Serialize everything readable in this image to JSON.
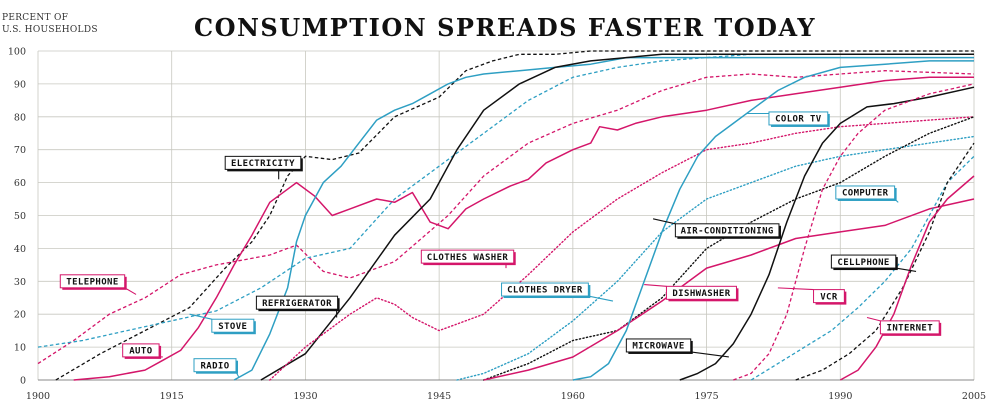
{
  "chart_data": {
    "type": "line",
    "title": "CONSUMPTION SPREADS FASTER TODAY",
    "ylabel_lines": [
      "PERCENT OF",
      "U.S. HOUSEHOLDS"
    ],
    "xlabel": "",
    "xlim": [
      1900,
      2005
    ],
    "ylim": [
      0,
      100
    ],
    "x_ticks": [
      1900,
      1915,
      1930,
      1945,
      1960,
      1975,
      1990,
      2005
    ],
    "y_ticks": [
      0,
      10,
      20,
      30,
      40,
      50,
      60,
      70,
      80,
      90,
      100
    ],
    "grid": true,
    "colors": {
      "black": "#111111",
      "cyan": "#2e9fc3",
      "magenta": "#d4166a",
      "grid": "#c8c8c0"
    },
    "series": [
      {
        "name": "ELECTRICITY",
        "color": "black",
        "style": "dashed",
        "x": [
          1902,
          1907,
          1912,
          1917,
          1921,
          1924,
          1926,
          1928,
          1930,
          1933,
          1936,
          1940,
          1945,
          1948,
          1951,
          1954,
          1958,
          1962,
          1966,
          2005
        ],
        "y": [
          0,
          8,
          15,
          22,
          34,
          42,
          50,
          62,
          68,
          67,
          69,
          80,
          86,
          94,
          97,
          99,
          99,
          100,
          100,
          100
        ]
      },
      {
        "name": "TELEPHONE",
        "color": "magenta",
        "style": "dashed",
        "x": [
          1900,
          1904,
          1908,
          1912,
          1916,
          1920,
          1926,
          1929,
          1932,
          1935,
          1940,
          1946,
          1950,
          1955,
          1960,
          1965,
          1970,
          1975,
          1980,
          1985,
          1990,
          1995,
          2005
        ],
        "y": [
          5,
          12,
          20,
          25,
          32,
          35,
          38,
          41,
          33,
          31,
          36,
          50,
          62,
          72,
          78,
          82,
          88,
          92,
          93,
          92,
          93,
          94,
          93
        ]
      },
      {
        "name": "AUTO",
        "color": "magenta",
        "style": "solid",
        "x": [
          1904,
          1908,
          1912,
          1914,
          1916,
          1918,
          1920,
          1922,
          1924,
          1926,
          1928,
          1929,
          1931,
          1933,
          1935,
          1938,
          1940,
          1942,
          1944,
          1946,
          1948,
          1950,
          1953,
          1955,
          1957,
          1960,
          1962,
          1963,
          1965,
          1967,
          1970,
          1975,
          1980,
          1985,
          1990,
          1995,
          2000,
          2005
        ],
        "y": [
          0,
          1,
          3,
          6,
          9,
          16,
          25,
          35,
          44,
          54,
          58,
          60,
          56,
          50,
          52,
          55,
          54,
          57,
          48,
          46,
          52,
          55,
          59,
          61,
          66,
          70,
          72,
          77,
          76,
          78,
          80,
          82,
          85,
          87,
          89,
          91,
          92,
          92
        ]
      },
      {
        "name": "STOVE",
        "color": "cyan",
        "style": "dashed",
        "x": [
          1900,
          1905,
          1910,
          1915,
          1920,
          1925,
          1930,
          1935,
          1940,
          1945,
          1950,
          1955,
          1960,
          1965,
          1970,
          1975,
          1980,
          1985,
          1990,
          1995,
          2000,
          2005
        ],
        "y": [
          10,
          12,
          15,
          18,
          21,
          28,
          37,
          40,
          55,
          65,
          75,
          85,
          92,
          95,
          97,
          98,
          99,
          99,
          99,
          99,
          99,
          99
        ]
      },
      {
        "name": "RADIO",
        "color": "cyan",
        "style": "solid",
        "x": [
          1922,
          1924,
          1926,
          1928,
          1929,
          1930,
          1932,
          1934,
          1936,
          1938,
          1940,
          1942,
          1944,
          1946,
          1948,
          1950,
          1954,
          1958,
          1962,
          1966,
          1970,
          1980,
          1990,
          2005
        ],
        "y": [
          0,
          3,
          14,
          28,
          42,
          50,
          60,
          65,
          72,
          79,
          82,
          84,
          87,
          90,
          92,
          93,
          94,
          95,
          96,
          98,
          98,
          98,
          98,
          98
        ]
      },
      {
        "name": "REFRIGERATOR",
        "color": "black",
        "style": "solid",
        "x": [
          1925,
          1930,
          1935,
          1940,
          1944,
          1947,
          1950,
          1954,
          1958,
          1962,
          1966,
          1970,
          1980,
          1990,
          2005
        ],
        "y": [
          0,
          8,
          25,
          44,
          55,
          70,
          82,
          90,
          95,
          97,
          98,
          99,
          99,
          99,
          99
        ]
      },
      {
        "name": "CLOTHES WASHER",
        "color": "magenta",
        "style": "dotted",
        "x": [
          1926,
          1930,
          1935,
          1938,
          1940,
          1942,
          1945,
          1950,
          1955,
          1960,
          1965,
          1970,
          1975,
          1980,
          1985,
          1990,
          1995,
          2000,
          2005
        ],
        "y": [
          0,
          10,
          20,
          25,
          23,
          19,
          15,
          20,
          32,
          45,
          55,
          63,
          70,
          72,
          75,
          77,
          78,
          79,
          80
        ]
      },
      {
        "name": "CLOTHES DRYER",
        "color": "cyan",
        "style": "dotted",
        "x": [
          1947,
          1950,
          1955,
          1960,
          1965,
          1970,
          1975,
          1980,
          1985,
          1990,
          1995,
          2000,
          2005
        ],
        "y": [
          0,
          2,
          8,
          18,
          30,
          45,
          55,
          60,
          65,
          68,
          70,
          72,
          74
        ]
      },
      {
        "name": "AIR-CONDITIONING",
        "color": "black",
        "style": "dotted",
        "x": [
          1950,
          1955,
          1960,
          1965,
          1970,
          1975,
          1980,
          1985,
          1990,
          1995,
          2000,
          2005
        ],
        "y": [
          0,
          5,
          12,
          15,
          25,
          40,
          48,
          55,
          60,
          68,
          75,
          80
        ]
      },
      {
        "name": "DISHWASHER",
        "color": "magenta",
        "style": "solid",
        "x": [
          1950,
          1955,
          1960,
          1965,
          1970,
          1975,
          1980,
          1985,
          1990,
          1995,
          2000,
          2005
        ],
        "y": [
          0,
          3,
          7,
          15,
          24,
          34,
          38,
          43,
          45,
          47,
          52,
          55
        ]
      },
      {
        "name": "COLOR TV",
        "color": "cyan",
        "style": "solid",
        "x": [
          1960,
          1962,
          1964,
          1966,
          1968,
          1970,
          1972,
          1974,
          1976,
          1978,
          1980,
          1983,
          1986,
          1990,
          1995,
          2000,
          2005
        ],
        "y": [
          0,
          1,
          5,
          15,
          30,
          45,
          58,
          68,
          74,
          78,
          82,
          88,
          92,
          95,
          96,
          97,
          97
        ]
      },
      {
        "name": "MICROWAVE",
        "color": "black",
        "style": "solid",
        "x": [
          1972,
          1974,
          1976,
          1978,
          1980,
          1982,
          1984,
          1986,
          1988,
          1990,
          1993,
          1996,
          2000,
          2005
        ],
        "y": [
          0,
          2,
          5,
          11,
          20,
          32,
          48,
          62,
          72,
          78,
          83,
          84,
          86,
          89
        ]
      },
      {
        "name": "VCR",
        "color": "magenta",
        "style": "dashed",
        "x": [
          1978,
          1980,
          1982,
          1984,
          1986,
          1988,
          1990,
          1992,
          1995,
          2000,
          2005
        ],
        "y": [
          0,
          2,
          8,
          20,
          40,
          58,
          68,
          75,
          82,
          87,
          90
        ]
      },
      {
        "name": "COMPUTER",
        "color": "cyan",
        "style": "dashed",
        "x": [
          1980,
          1983,
          1986,
          1989,
          1992,
          1995,
          1998,
          2000,
          2002,
          2005
        ],
        "y": [
          0,
          5,
          10,
          15,
          22,
          30,
          40,
          50,
          60,
          68
        ]
      },
      {
        "name": "CELLPHONE",
        "color": "black",
        "style": "dashed",
        "x": [
          1985,
          1988,
          1991,
          1994,
          1997,
          2000,
          2002,
          2005
        ],
        "y": [
          0,
          3,
          8,
          15,
          28,
          45,
          60,
          72
        ]
      },
      {
        "name": "INTERNET",
        "color": "magenta",
        "style": "solid",
        "x": [
          1990,
          1992,
          1994,
          1996,
          1998,
          2000,
          2002,
          2005
        ],
        "y": [
          0,
          3,
          10,
          20,
          35,
          48,
          55,
          62
        ]
      }
    ],
    "labels": [
      {
        "text": "ELECTRICITY",
        "series": "ELECTRICITY",
        "color": "black",
        "at": [
          1921,
          66
        ],
        "point": [
          1927,
          61
        ]
      },
      {
        "text": "TELEPHONE",
        "series": "TELEPHONE",
        "color": "magenta",
        "at": [
          1902.5,
          30
        ],
        "point": [
          1911,
          26
        ]
      },
      {
        "text": "AUTO",
        "series": "AUTO",
        "color": "magenta",
        "at": [
          1909.5,
          9
        ],
        "point": [
          1914,
          7
        ]
      },
      {
        "text": "STOVE",
        "series": "STOVE",
        "color": "cyan",
        "at": [
          1919.5,
          16.5
        ],
        "point": [
          1917,
          20
        ]
      },
      {
        "text": "RADIO",
        "series": "RADIO",
        "color": "cyan",
        "at": [
          1917.5,
          4.5
        ],
        "point": [
          1922.5,
          1
        ]
      },
      {
        "text": "REFRIGERATOR",
        "series": "REFRIGERATOR",
        "color": "black",
        "at": [
          1924.5,
          23.5
        ],
        "point": [
          1933.5,
          19
        ]
      },
      {
        "text": "CLOTHES WASHER",
        "series": "CLOTHES WASHER",
        "color": "magenta",
        "at": [
          1943,
          37.5
        ],
        "point": [
          1952.5,
          34
        ]
      },
      {
        "text": "CLOTHES DRYER",
        "series": "CLOTHES DRYER",
        "color": "cyan",
        "at": [
          1952,
          27.5
        ],
        "point": [
          1964.5,
          24
        ]
      },
      {
        "text": "AIR-CONDITIONING",
        "series": "AIR-CONDITIONING",
        "color": "black",
        "at": [
          1971.5,
          45.5
        ],
        "point": [
          1969,
          49
        ]
      },
      {
        "text": "DISHWASHER",
        "series": "DISHWASHER",
        "color": "magenta",
        "at": [
          1970.5,
          26.5
        ],
        "point": [
          1968,
          29
        ]
      },
      {
        "text": "COLOR TV",
        "series": "COLOR TV",
        "color": "cyan",
        "at": [
          1982,
          79.5
        ],
        "point": [
          1979.5,
          81
        ]
      },
      {
        "text": "MICROWAVE",
        "series": "MICROWAVE",
        "color": "black",
        "at": [
          1966,
          10.5
        ],
        "point": [
          1977.5,
          7
        ]
      },
      {
        "text": "VCR",
        "series": "VCR",
        "color": "magenta",
        "at": [
          1987,
          25.5
        ],
        "point": [
          1983,
          28
        ]
      },
      {
        "text": "COMPUTER",
        "series": "COMPUTER",
        "color": "cyan",
        "at": [
          1989.5,
          57
        ],
        "point": [
          1996.5,
          54
        ]
      },
      {
        "text": "CELLPHONE",
        "series": "CELLPHONE",
        "color": "black",
        "at": [
          1989,
          36
        ],
        "point": [
          1998.5,
          33
        ]
      },
      {
        "text": "INTERNET",
        "series": "INTERNET",
        "color": "magenta",
        "at": [
          1994.5,
          16
        ],
        "point": [
          1993,
          19
        ]
      }
    ]
  }
}
